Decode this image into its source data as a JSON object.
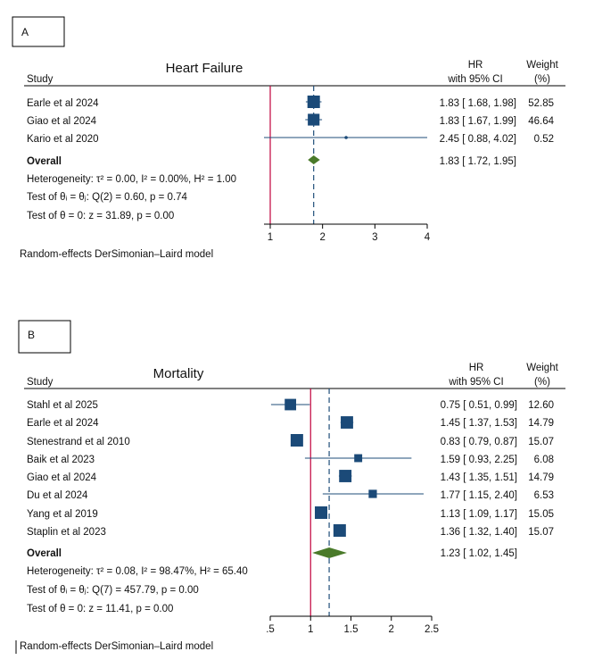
{
  "chart_data": [
    {
      "type": "forest",
      "panel_label": "A",
      "title": "Heart Failure",
      "header_study": "Study",
      "header_hr": [
        "HR",
        "with 95% CI"
      ],
      "header_weight": [
        "Weight",
        "(%)"
      ],
      "studies": [
        {
          "name": "Earle et al 2024",
          "hr": 1.83,
          "lo": 1.68,
          "hi": 1.98,
          "ci_text": "1.83 [ 1.68, 1.98]",
          "weight": 52.85,
          "weight_text": "52.85"
        },
        {
          "name": "Giao et al 2024",
          "hr": 1.83,
          "lo": 1.67,
          "hi": 1.99,
          "ci_text": "1.83 [ 1.67, 1.99]",
          "weight": 46.64,
          "weight_text": "46.64"
        },
        {
          "name": "Kario et al 2020",
          "hr": 2.45,
          "lo": 0.88,
          "hi": 4.02,
          "ci_text": "2.45 [ 0.88, 4.02]",
          "weight": 0.52,
          "weight_text": "0.52"
        }
      ],
      "overall": {
        "label": "Overall",
        "hr": 1.83,
        "lo": 1.72,
        "hi": 1.95,
        "ci_text": "1.83 [ 1.72, 1.95]"
      },
      "heterogeneity": "Heterogeneity: τ² = 0.00, I² = 0.00%, H² = 1.00",
      "test_equal": "Test of θᵢ = θⱼ: Q(2) = 0.60, p = 0.74",
      "test_zero": "Test of θ = 0: z = 31.89, p = 0.00",
      "xaxis": {
        "min": 1,
        "max": 4,
        "ticks": [
          1,
          2,
          3,
          4
        ],
        "tick_labels": [
          "1",
          "2",
          "3",
          "4"
        ],
        "null_value": 1
      },
      "footnote": "Random-effects DerSimonian–Laird model"
    },
    {
      "type": "forest",
      "panel_label": "B",
      "title": "Mortality",
      "header_study": "Study",
      "header_hr": [
        "HR",
        "with 95% CI"
      ],
      "header_weight": [
        "Weight",
        "(%)"
      ],
      "studies": [
        {
          "name": "Stahl et al 2025",
          "hr": 0.75,
          "lo": 0.51,
          "hi": 0.99,
          "ci_text": "0.75 [ 0.51, 0.99]",
          "weight": 12.6,
          "weight_text": "12.60"
        },
        {
          "name": "Earle et al 2024",
          "hr": 1.45,
          "lo": 1.37,
          "hi": 1.53,
          "ci_text": "1.45 [ 1.37, 1.53]",
          "weight": 14.79,
          "weight_text": "14.79"
        },
        {
          "name": "Stenestrand et al 2010",
          "hr": 0.83,
          "lo": 0.79,
          "hi": 0.87,
          "ci_text": "0.83 [ 0.79, 0.87]",
          "weight": 15.07,
          "weight_text": "15.07"
        },
        {
          "name": "Baik et al 2023",
          "hr": 1.59,
          "lo": 0.93,
          "hi": 2.25,
          "ci_text": "1.59 [ 0.93, 2.25]",
          "weight": 6.08,
          "weight_text": "6.08"
        },
        {
          "name": "Giao et al 2024",
          "hr": 1.43,
          "lo": 1.35,
          "hi": 1.51,
          "ci_text": "1.43 [ 1.35, 1.51]",
          "weight": 14.79,
          "weight_text": "14.79"
        },
        {
          "name": "Du et al 2024",
          "hr": 1.77,
          "lo": 1.15,
          "hi": 2.4,
          "ci_text": "1.77 [ 1.15, 2.40]",
          "weight": 6.53,
          "weight_text": "6.53"
        },
        {
          "name": "Yang et al 2019",
          "hr": 1.13,
          "lo": 1.09,
          "hi": 1.17,
          "ci_text": "1.13 [ 1.09, 1.17]",
          "weight": 15.05,
          "weight_text": "15.05"
        },
        {
          "name": "Staplin et al 2023",
          "hr": 1.36,
          "lo": 1.32,
          "hi": 1.4,
          "ci_text": "1.36 [ 1.32, 1.40]",
          "weight": 15.07,
          "weight_text": "15.07"
        }
      ],
      "overall": {
        "label": "Overall",
        "hr": 1.23,
        "lo": 1.02,
        "hi": 1.45,
        "ci_text": "1.23 [ 1.02, 1.45]"
      },
      "heterogeneity": "Heterogeneity: τ² = 0.08, I² = 98.47%, H² = 65.40",
      "test_equal": "Test of θᵢ = θⱼ: Q(7) = 457.79, p = 0.00",
      "test_zero": "Test of θ = 0: z = 11.41, p = 0.00",
      "xaxis": {
        "min": 0.5,
        "max": 2.5,
        "ticks": [
          0.5,
          1,
          1.5,
          2,
          2.5
        ],
        "tick_labels": [
          ".5",
          "1",
          "1.5",
          "2",
          "2.5"
        ],
        "null_value": 1
      },
      "footnote": "Random-effects DerSimonian–Laird model"
    }
  ]
}
